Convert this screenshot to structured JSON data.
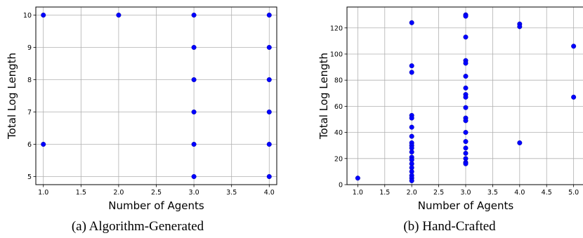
{
  "chart_data": [
    {
      "type": "scatter",
      "caption": "(a) Algorithm-Generated",
      "xlabel": "Number of Agents",
      "ylabel": "Total Log Length",
      "xlim": [
        0.9,
        4.1
      ],
      "ylim": [
        4.75,
        10.25
      ],
      "xticks": [
        "1.0",
        "1.5",
        "2.0",
        "2.5",
        "3.0",
        "3.5",
        "4.0"
      ],
      "xtick_values": [
        1.0,
        1.5,
        2.0,
        2.5,
        3.0,
        3.5,
        4.0
      ],
      "yticks": [
        "5",
        "6",
        "7",
        "8",
        "9",
        "10"
      ],
      "ytick_values": [
        5,
        6,
        7,
        8,
        9,
        10
      ],
      "grid": true,
      "marker_color": "#0000ff",
      "x": [
        1,
        1,
        2,
        3,
        3,
        3,
        3,
        3,
        3,
        4,
        4,
        4,
        4,
        4,
        4
      ],
      "y": [
        10,
        6,
        10,
        10,
        9,
        8,
        7,
        6,
        5,
        10,
        9,
        8,
        7,
        6,
        5
      ]
    },
    {
      "type": "scatter",
      "caption": "(b) Hand-Crafted",
      "xlabel": "Number of Agents",
      "ylabel": "Total Log Length",
      "xlim": [
        0.8,
        5.2
      ],
      "ylim": [
        0,
        136
      ],
      "xticks": [
        "1.0",
        "1.5",
        "2.0",
        "2.5",
        "3.0",
        "3.5",
        "4.0",
        "4.5",
        "5.0"
      ],
      "xtick_values": [
        1.0,
        1.5,
        2.0,
        2.5,
        3.0,
        3.5,
        4.0,
        4.5,
        5.0
      ],
      "yticks": [
        "0",
        "20",
        "40",
        "60",
        "80",
        "100",
        "120"
      ],
      "ytick_values": [
        0,
        20,
        40,
        60,
        80,
        100,
        120
      ],
      "grid": true,
      "marker_color": "#0000ff",
      "x": [
        1,
        2,
        2,
        2,
        2,
        2,
        2,
        2,
        2,
        2,
        2,
        2,
        2,
        2,
        2,
        2,
        2,
        2,
        2,
        2,
        3,
        3,
        3,
        3,
        3,
        3,
        3,
        3,
        3,
        3,
        3,
        3,
        3,
        3,
        3,
        3,
        3,
        3,
        3,
        4,
        4,
        4,
        5,
        5
      ],
      "y": [
        5,
        124,
        91,
        86,
        53,
        51,
        44,
        37,
        32,
        30,
        28,
        25,
        21,
        19,
        16,
        13,
        10,
        7,
        5,
        3,
        130,
        129,
        113,
        95,
        93,
        83,
        74,
        69,
        67,
        59,
        51,
        49,
        40,
        33,
        28,
        24,
        20,
        17,
        16,
        123,
        121,
        32,
        106,
        67
      ]
    }
  ]
}
